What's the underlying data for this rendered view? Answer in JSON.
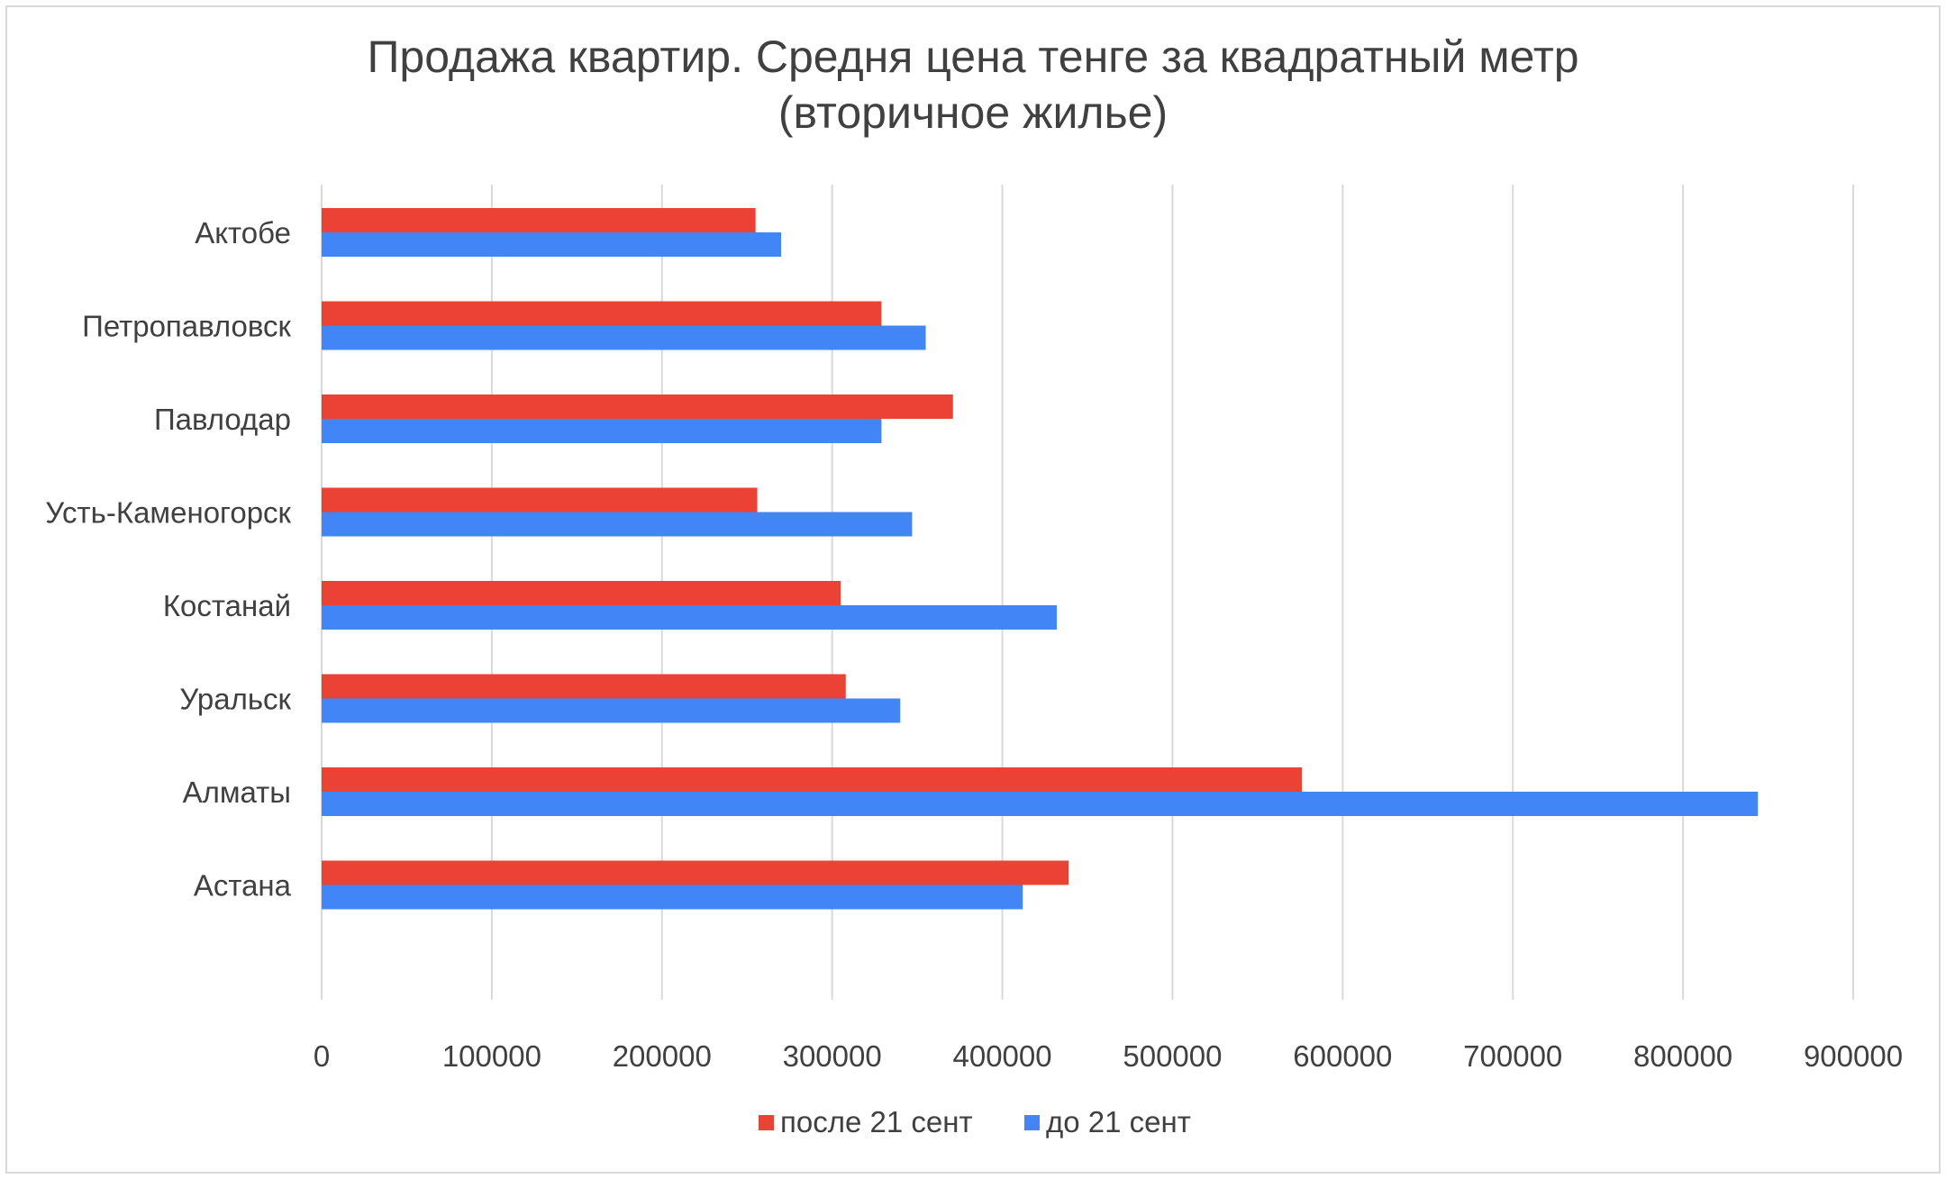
{
  "chart_data": {
    "type": "bar",
    "orientation": "horizontal",
    "title_lines": [
      "Продажа квартир. Средня цена тенге за квадратный метр",
      "(вторичное жилье)"
    ],
    "categories": [
      "Актобе",
      "Петропавловск",
      "Павлодар",
      "Усть-Каменогорск",
      "Костанай",
      "Уральск",
      "Алматы",
      "Астана"
    ],
    "series": [
      {
        "name": "после 21 сент",
        "color": "#ea4335",
        "values": [
          255000,
          329000,
          371000,
          256000,
          305000,
          308000,
          576000,
          439000
        ]
      },
      {
        "name": "до 21 сент",
        "color": "#4285f4",
        "values": [
          270000,
          355000,
          329000,
          347000,
          432000,
          340000,
          844000,
          412000
        ]
      }
    ],
    "xlim": [
      0,
      900000
    ],
    "xticks": [
      0,
      100000,
      200000,
      300000,
      400000,
      500000,
      600000,
      700000,
      800000,
      900000
    ],
    "xtick_labels": [
      "0",
      "100000",
      "200000",
      "300000",
      "400000",
      "500000",
      "600000",
      "700000",
      "800000",
      "900000"
    ],
    "grid": "vertical",
    "legend_position": "bottom"
  }
}
